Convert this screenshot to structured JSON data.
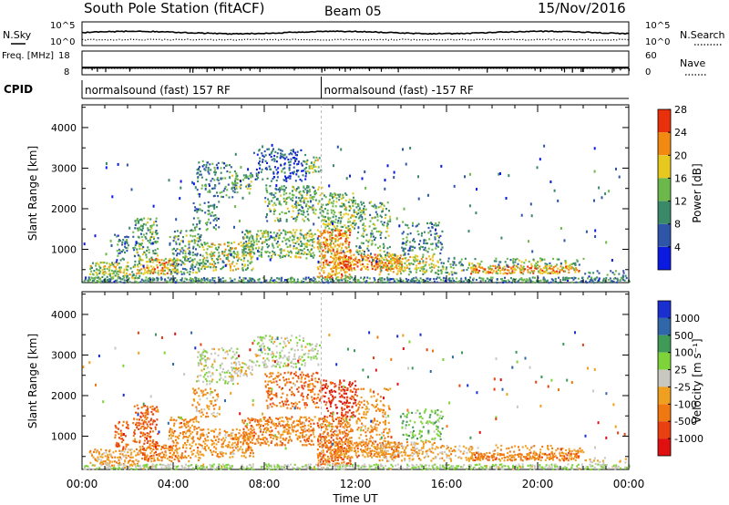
{
  "header": {
    "station": "South Pole Station (fitACF)",
    "beam": "Beam 05",
    "date": "15/Nov/2016"
  },
  "chart_data": [
    {
      "type": "line",
      "panel": "noise",
      "left_label": "N.Sky",
      "left_ticks": [
        "10^5",
        "10^0"
      ],
      "right_label": "N.Search",
      "right_ticks": [
        "10^5",
        "10^0"
      ],
      "series": [
        {
          "name": "N.Sky",
          "style": "solid",
          "level": 0.55
        },
        {
          "name": "N.Search",
          "style": "dotted",
          "level": 0.25
        }
      ]
    },
    {
      "type": "line",
      "panel": "frequency",
      "left_label": "Freq. [MHz]",
      "left_ticks": [
        "18",
        "8"
      ],
      "right_label": "Nave",
      "right_ticks": [
        "60",
        "0"
      ],
      "series": [
        {
          "name": "Freq",
          "style": "solid",
          "value": 11
        },
        {
          "name": "Nave",
          "style": "dotted",
          "value": 16
        }
      ]
    },
    {
      "type": "heatmap",
      "panel": "cpid",
      "label": "CPID",
      "segments": [
        {
          "start_h": 0,
          "end_h": 10.5,
          "text": "normalsound (fast) 157 RF"
        },
        {
          "start_h": 10.5,
          "end_h": 24,
          "text": "normalsound (fast) -157 RF"
        }
      ]
    },
    {
      "type": "heatmap",
      "panel": "power",
      "ylabel": "Slant Range [km]",
      "yticks": [
        1000,
        2000,
        3000,
        4000
      ],
      "ylim": [
        180,
        4560
      ],
      "xlim": [
        0,
        24
      ],
      "colorbar": {
        "label": "Power [dB]",
        "ticks": [
          "4",
          "8",
          "12",
          "16",
          "20",
          "24",
          "28"
        ],
        "colors": [
          "#0a1ae0",
          "#2e55a8",
          "#3a8a6a",
          "#6cb84a",
          "#e6c81e",
          "#f28a12",
          "#e8300a"
        ]
      }
    },
    {
      "type": "heatmap",
      "panel": "velocity",
      "ylabel": "Slant Range [km]",
      "yticks": [
        1000,
        2000,
        3000,
        4000
      ],
      "ylim": [
        180,
        4560
      ],
      "xlim": [
        0,
        24
      ],
      "xticks": [
        "00:00",
        "04:00",
        "08:00",
        "12:00",
        "16:00",
        "20:00",
        "00:00"
      ],
      "xlabel": "Time UT",
      "colorbar": {
        "label": "Velocity [m s⁻¹]",
        "ticks": [
          "1000",
          "500",
          "100",
          "25",
          "-25",
          "-100",
          "-500",
          "-1000"
        ],
        "colors": [
          "#1a2fd0",
          "#2f67a8",
          "#3e9a56",
          "#7ed23a",
          "#c8c8c0",
          "#f0a020",
          "#f07810",
          "#e84010",
          "#e01010"
        ]
      }
    }
  ]
}
